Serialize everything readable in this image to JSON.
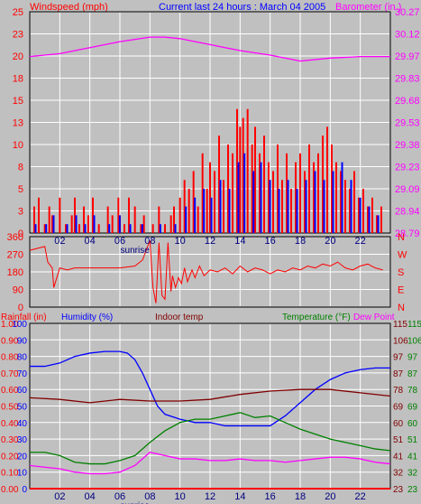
{
  "header": {
    "left": "Windspeed (mph)",
    "center": "Current last 24 hours : March 04 2005",
    "right": "Barometer (in.)"
  },
  "colors": {
    "background": "#c0c0c0",
    "plot": "#c0c0c0",
    "grid": "#ffffff",
    "wind_gust": "#ff0000",
    "wind_avg": "#0000ff",
    "barometer": "#ff00ff",
    "direction": "#ff0000",
    "rain": "#ff0000",
    "humidity": "#0000ff",
    "indoor": "#800000",
    "temperature": "#008000",
    "dewpoint": "#ff00ff"
  },
  "bottom_header": {
    "rain": "Rainfall (in)",
    "humidity": "Humidity (%)",
    "indoor": "Indoor temp",
    "temperature": "Temperature (°F)",
    "dewpoint": "Dew Point"
  },
  "x_axis": {
    "ticks": [
      "02",
      "04",
      "06",
      "08",
      "10",
      "12",
      "14",
      "16",
      "18",
      "20",
      "22"
    ],
    "sunrise_label": "sunrise",
    "range_hours": [
      0,
      24
    ]
  },
  "chart_data": [
    {
      "type": "bar",
      "title": "Windspeed (mph)",
      "ylabel": "Windspeed (mph)",
      "ylim": [
        0,
        25
      ],
      "y_ticks_left": [
        "25",
        "23",
        "20",
        "18",
        "15",
        "13",
        "10",
        "8",
        "5",
        "3",
        "0"
      ],
      "y_ticks_right": [
        "30.27",
        "30.12",
        "29.97",
        "29.83",
        "29.68",
        "29.53",
        "29.38",
        "29.23",
        "29.09",
        "28.94",
        "28.79"
      ],
      "right_ylabel": "Barometer (in.)",
      "right_ylim": [
        28.79,
        30.27
      ],
      "series": [
        {
          "name": "gust",
          "x": [
            0.3,
            0.6,
            1.0,
            1.3,
            1.5,
            2.0,
            2.4,
            2.8,
            3.0,
            3.3,
            3.6,
            3.9,
            4.2,
            4.6,
            5.2,
            5.5,
            5.9,
            6.0,
            6.3,
            6.6,
            7.0,
            7.4,
            7.6,
            8.2,
            8.6,
            9.0,
            9.4,
            9.6,
            10.0,
            10.3,
            10.6,
            10.9,
            11.2,
            11.5,
            11.8,
            12.0,
            12.3,
            12.6,
            12.9,
            13.2,
            13.5,
            13.8,
            14.0,
            14.2,
            14.5,
            14.8,
            15.0,
            15.3,
            15.6,
            15.9,
            16.2,
            16.5,
            16.8,
            17.1,
            17.4,
            17.7,
            18.0,
            18.3,
            18.6,
            18.9,
            19.2,
            19.5,
            19.8,
            20.1,
            20.4,
            20.7,
            21.0,
            21.3,
            21.6,
            21.9,
            22.2,
            22.5,
            22.8,
            23.1,
            23.4
          ],
          "values": [
            3,
            4,
            1,
            3,
            2,
            4,
            1,
            2,
            4,
            1,
            3,
            2,
            4,
            1,
            3,
            2,
            4,
            2,
            1,
            4,
            3,
            1,
            2,
            1,
            3,
            1,
            2,
            3,
            4,
            6,
            5,
            7,
            3,
            9,
            5,
            8,
            7,
            11,
            6,
            10,
            9,
            14,
            12,
            13,
            14,
            10,
            12,
            9,
            11,
            8,
            7,
            10,
            6,
            9,
            5,
            8,
            9,
            7,
            10,
            8,
            9,
            11,
            12,
            10,
            8,
            7,
            6,
            5,
            7,
            4,
            5,
            3,
            4,
            2,
            3
          ]
        },
        {
          "name": "average",
          "x": [
            0.3,
            1.0,
            1.5,
            2.4,
            3.0,
            3.6,
            4.2,
            5.2,
            5.9,
            6.6,
            7.4,
            8.6,
            9.6,
            10.3,
            10.9,
            11.5,
            12.0,
            12.6,
            13.2,
            13.8,
            14.2,
            14.8,
            15.3,
            15.9,
            16.5,
            17.1,
            17.7,
            18.3,
            18.9,
            19.5,
            20.1,
            20.7,
            21.3,
            21.9,
            22.5,
            23.1
          ],
          "values": [
            1,
            1,
            2,
            1,
            2,
            1,
            2,
            1,
            2,
            1,
            1,
            1,
            1,
            3,
            4,
            5,
            4,
            6,
            5,
            8,
            9,
            7,
            8,
            6,
            5,
            6,
            5,
            6,
            7,
            6,
            7,
            8,
            6,
            4,
            3,
            2
          ]
        },
        {
          "name": "barometer",
          "x": [
            0,
            2,
            4,
            6,
            8,
            9,
            10,
            12,
            14,
            16,
            18,
            20,
            22,
            24
          ],
          "values": [
            29.97,
            29.99,
            30.03,
            30.07,
            30.1,
            30.1,
            30.09,
            30.05,
            30.01,
            29.98,
            29.94,
            29.96,
            29.97,
            29.97
          ]
        }
      ]
    },
    {
      "type": "scatter",
      "title": "Wind direction",
      "ylim": [
        0,
        360
      ],
      "y_ticks_left": [
        "360",
        "270",
        "180",
        "90",
        "0"
      ],
      "y_ticks_right": [
        "N",
        "W",
        "S",
        "E",
        "N"
      ],
      "series": [
        {
          "name": "direction",
          "x": [
            0,
            0.5,
            1.0,
            1.2,
            1.5,
            1.6,
            2.0,
            2.5,
            3.0,
            4.0,
            5.0,
            6.0,
            7.0,
            7.5,
            7.8,
            8.0,
            8.2,
            8.4,
            8.6,
            8.8,
            9.0,
            9.2,
            9.4,
            9.5,
            9.7,
            9.9,
            10.1,
            10.3,
            10.5,
            10.8,
            11.0,
            11.3,
            11.6,
            12.0,
            12.5,
            13.0,
            13.5,
            14.0,
            14.5,
            15.0,
            15.5,
            16.0,
            16.5,
            17.0,
            17.5,
            18.0,
            18.5,
            19.0,
            19.5,
            20.0,
            20.5,
            21.0,
            21.5,
            22.0,
            22.5,
            23.0,
            23.5
          ],
          "values": [
            290,
            300,
            310,
            230,
            200,
            100,
            200,
            190,
            200,
            200,
            200,
            200,
            210,
            240,
            300,
            340,
            100,
            20,
            330,
            60,
            40,
            330,
            80,
            160,
            100,
            150,
            120,
            200,
            130,
            190,
            150,
            210,
            160,
            190,
            180,
            200,
            170,
            210,
            180,
            200,
            190,
            170,
            190,
            180,
            200,
            190,
            210,
            200,
            220,
            210,
            230,
            200,
            190,
            210,
            220,
            200,
            190
          ]
        }
      ]
    },
    {
      "type": "line",
      "title": "Humidity / Temperature",
      "ylim": [
        0,
        100
      ],
      "y_ticks_rain": [
        "1.00",
        "0.90",
        "0.80",
        "0.70",
        "0.60",
        "0.50",
        "0.40",
        "0.30",
        "0.20",
        "0.10",
        "0.00"
      ],
      "y_ticks_humidity": [
        "100",
        "90",
        "80",
        "70",
        "60",
        "50",
        "40",
        "30",
        "20",
        "10",
        "0"
      ],
      "y_ticks_temp": [
        "115",
        "106",
        "97",
        "87",
        "78",
        "69",
        "60",
        "51",
        "41",
        "32",
        "23"
      ],
      "y_ticks_dew": [
        "115",
        "106",
        "97",
        "87",
        "78",
        "69",
        "60",
        "51",
        "41",
        "32",
        "23"
      ],
      "series": [
        {
          "name": "Humidity",
          "x": [
            0,
            1,
            2,
            3,
            4,
            5,
            6,
            6.5,
            7,
            7.5,
            8,
            8.5,
            9,
            10,
            11,
            12,
            13,
            14,
            15,
            16,
            17,
            18,
            19,
            20,
            21,
            22,
            23,
            24
          ],
          "values": [
            74,
            74,
            76,
            80,
            82,
            83,
            83,
            82,
            78,
            70,
            60,
            50,
            45,
            42,
            40,
            40,
            38,
            38,
            38,
            38,
            44,
            52,
            60,
            66,
            70,
            72,
            73,
            73
          ]
        },
        {
          "name": "Indoor temp",
          "x": [
            0,
            2,
            4,
            6,
            8,
            10,
            12,
            14,
            16,
            18,
            20,
            22,
            24
          ],
          "values": [
            55,
            54,
            52,
            54,
            53,
            53,
            54,
            57,
            59,
            60,
            60,
            58,
            56
          ]
        },
        {
          "name": "Temperature",
          "x": [
            0,
            1,
            2,
            3,
            4,
            5,
            6,
            7,
            8,
            9,
            10,
            11,
            12,
            13,
            14,
            15,
            16,
            17,
            18,
            19,
            20,
            21,
            22,
            23,
            24
          ],
          "values": [
            22,
            22,
            20,
            16,
            15,
            15,
            17,
            20,
            28,
            35,
            40,
            42,
            42,
            44,
            46,
            43,
            44,
            40,
            36,
            33,
            30,
            28,
            26,
            24,
            23
          ]
        },
        {
          "name": "Dew Point",
          "x": [
            0,
            1,
            2,
            3,
            4,
            5,
            6,
            7,
            8,
            9,
            10,
            11,
            12,
            13,
            14,
            15,
            16,
            17,
            18,
            19,
            20,
            21,
            22,
            23,
            24
          ],
          "values": [
            14,
            13,
            12,
            10,
            9,
            9,
            10,
            14,
            22,
            20,
            18,
            18,
            17,
            17,
            18,
            17,
            17,
            16,
            17,
            18,
            19,
            19,
            18,
            16,
            15
          ]
        },
        {
          "name": "Rainfall",
          "x": [
            0,
            24
          ],
          "values": [
            0,
            0
          ]
        }
      ]
    }
  ]
}
